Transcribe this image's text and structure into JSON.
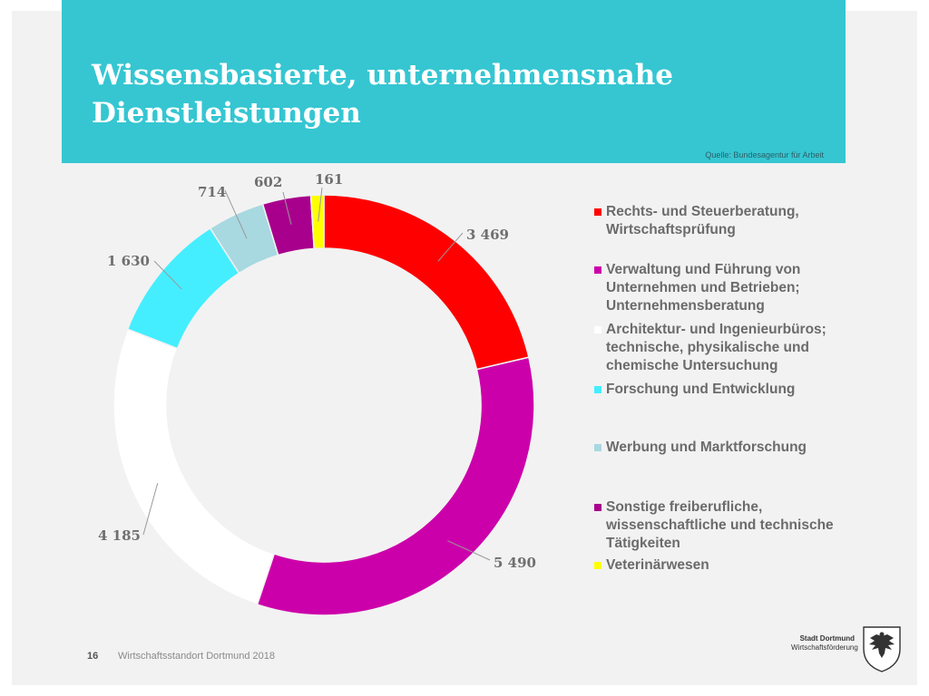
{
  "slide": {
    "title_line1": "Wissensbasierte, unternehmensnahe",
    "title_line2": "Dienstleistungen",
    "source": "Quelle: Bundesagentur für Arbeit",
    "page_number": "16",
    "footer_text": "Wirtschaftsstandort Dortmund 2018",
    "logo_line1": "Stadt Dortmund",
    "logo_line2": "Wirtschaftsförderung"
  },
  "colors": {
    "header": "#35c6d2",
    "background": "#f2f2f2"
  },
  "chart_data": {
    "type": "pie",
    "donut": true,
    "legend_position": "right",
    "series": [
      {
        "name": "Rechts- und Steuerberatung, Wirtschaftsprüfung",
        "value": 3469,
        "label": "3 469",
        "color": "#ff0000"
      },
      {
        "name": "Verwaltung und Führung von Unternehmen und Betrieben; Unternehmensberatung",
        "value": 5490,
        "label": "5 490",
        "color": "#cc00aa"
      },
      {
        "name": "Architektur- und Ingenieurbüros; technische, physikalische und chemische Untersuchung",
        "value": 4185,
        "label": "4 185",
        "color": "#ffffff"
      },
      {
        "name": "Forschung und Entwicklung",
        "value": 1630,
        "label": "1 630",
        "color": "#44eeff"
      },
      {
        "name": "Werbung und Marktforschung",
        "value": 714,
        "label": "714",
        "color": "#a8d8e0"
      },
      {
        "name": "Sonstige freiberufliche, wissenschaftliche und technische Tätigkeiten",
        "value": 602,
        "label": "602",
        "color": "#a8008c"
      },
      {
        "name": "Veterinärwesen",
        "value": 161,
        "label": "161",
        "color": "#ffff00"
      }
    ]
  }
}
